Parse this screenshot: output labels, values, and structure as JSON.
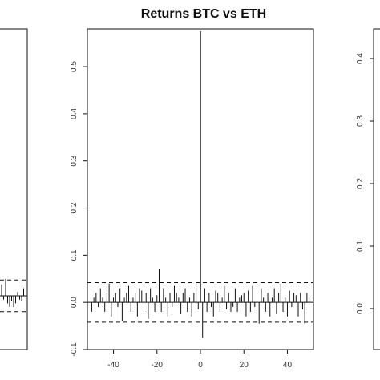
{
  "chart_data": [
    {
      "type": "bar",
      "title": "",
      "ylim": [
        -0.1,
        0.1
      ],
      "y_ticks": [],
      "x_ticks": [],
      "bounds_dashed": [
        0.042,
        -0.042
      ],
      "note": "Left panel, mostly cropped; only right portion visible."
    },
    {
      "type": "bar",
      "title": "Returns BTC vs ETH",
      "xlabel": "",
      "ylabel": "",
      "xlim": [
        -52,
        52
      ],
      "ylim": [
        -0.1,
        0.58
      ],
      "x_ticks": [
        -40,
        -20,
        0,
        20,
        40
      ],
      "y_ticks": [
        -0.1,
        0.0,
        0.1,
        0.2,
        0.3,
        0.4,
        0.5
      ],
      "y_tick_labels": [
        "-0.1",
        "0.0",
        "0.1",
        "0.2",
        "0.3",
        "0.4",
        "0.5"
      ],
      "bounds_dashed": [
        0.042,
        -0.042
      ],
      "lags": [
        -50,
        -49,
        -48,
        -47,
        -46,
        -45,
        -44,
        -43,
        -42,
        -41,
        -40,
        -39,
        -38,
        -37,
        -36,
        -35,
        -34,
        -33,
        -32,
        -31,
        -30,
        -29,
        -28,
        -27,
        -26,
        -25,
        -24,
        -23,
        -22,
        -21,
        -20,
        -19,
        -18,
        -17,
        -16,
        -15,
        -14,
        -13,
        -12,
        -11,
        -10,
        -9,
        -8,
        -7,
        -6,
        -5,
        -4,
        -3,
        -2,
        -1,
        0,
        1,
        2,
        3,
        4,
        5,
        6,
        7,
        8,
        9,
        10,
        11,
        12,
        13,
        14,
        15,
        16,
        17,
        18,
        19,
        20,
        21,
        22,
        23,
        24,
        25,
        26,
        27,
        28,
        29,
        30,
        31,
        32,
        33,
        34,
        35,
        36,
        37,
        38,
        39,
        40,
        41,
        42,
        43,
        44,
        45,
        46,
        47,
        48,
        49,
        50
      ],
      "values": [
        -0.02,
        0.01,
        0.02,
        -0.01,
        0.03,
        0.01,
        -0.02,
        0.02,
        0.04,
        -0.03,
        0.01,
        0.02,
        -0.01,
        0.03,
        -0.04,
        0.01,
        0.02,
        0.035,
        -0.02,
        0.01,
        0.02,
        -0.03,
        0.03,
        0.025,
        -0.02,
        0.02,
        -0.035,
        0.03,
        0.01,
        -0.02,
        0.015,
        0.07,
        -0.02,
        0.03,
        0.01,
        -0.03,
        0.02,
        -0.01,
        0.035,
        0.02,
        0.01,
        -0.025,
        0.02,
        0.03,
        -0.02,
        0.01,
        -0.03,
        0.02,
        0.04,
        -0.015,
        0.575,
        -0.075,
        0.03,
        -0.02,
        0.02,
        -0.01,
        -0.03,
        0.025,
        0.02,
        -0.02,
        0.01,
        0.035,
        -0.015,
        0.02,
        -0.02,
        -0.01,
        0.03,
        -0.02,
        0.01,
        0.015,
        0.02,
        -0.03,
        0.025,
        -0.02,
        0.035,
        -0.01,
        0.02,
        -0.045,
        0.03,
        0.01,
        -0.02,
        0.02,
        -0.03,
        0.01,
        0.03,
        -0.025,
        0.02,
        0.04,
        -0.02,
        0.01,
        -0.03,
        0.025,
        -0.01,
        0.02,
        0.015,
        -0.03,
        0.02,
        -0.015,
        -0.045,
        0.02,
        0.01
      ]
    },
    {
      "type": "bar",
      "title": "",
      "ylim": [
        -0.02,
        0.45
      ],
      "y_ticks": [
        0.0,
        0.1,
        0.2,
        0.3,
        0.4
      ],
      "y_tick_labels": [
        "0.0",
        "0.1",
        "0.2",
        "0.3",
        "0.4"
      ],
      "note": "Right panel, mostly cropped; only left axis visible."
    }
  ]
}
